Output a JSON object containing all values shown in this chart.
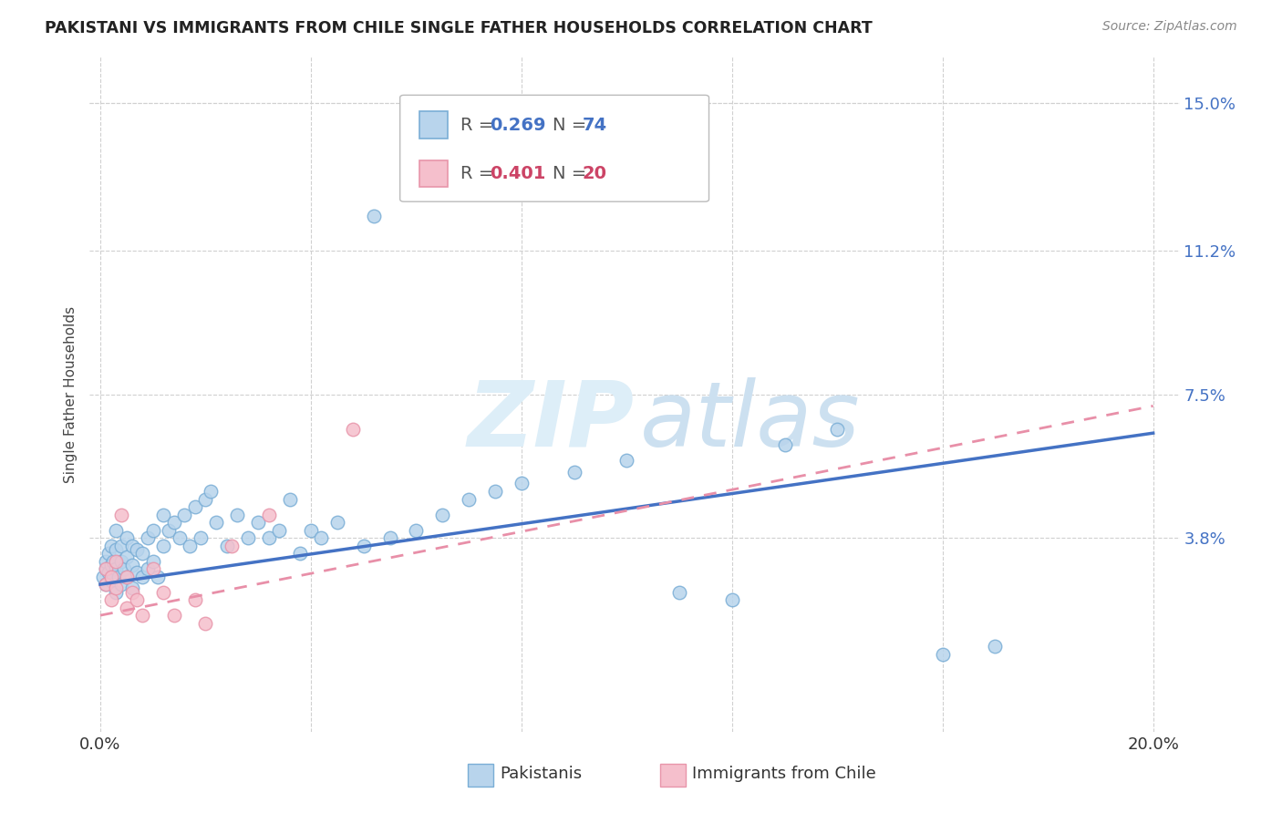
{
  "title": "PAKISTANI VS IMMIGRANTS FROM CHILE SINGLE FATHER HOUSEHOLDS CORRELATION CHART",
  "source": "Source: ZipAtlas.com",
  "ylabel": "Single Father Households",
  "xlim": [
    -0.002,
    0.205
  ],
  "ylim": [
    -0.012,
    0.162
  ],
  "xticks": [
    0.0,
    0.04,
    0.08,
    0.12,
    0.16,
    0.2
  ],
  "xticklabels": [
    "0.0%",
    "",
    "",
    "",
    "",
    "20.0%"
  ],
  "yticks": [
    0.038,
    0.075,
    0.112,
    0.15
  ],
  "yticklabels": [
    "3.8%",
    "7.5%",
    "11.2%",
    "15.0%"
  ],
  "blue_fill": "#b8d4ec",
  "blue_edge": "#7aaed6",
  "pink_fill": "#f5bfcc",
  "pink_edge": "#e895aa",
  "trend_blue": "#4472c4",
  "trend_pink": "#e88fa8",
  "grid_color": "#d0d0d0",
  "blue_trend_start_y": 0.026,
  "blue_trend_end_y": 0.065,
  "pink_trend_start_y": 0.018,
  "pink_trend_end_y": 0.072,
  "pak_x": [
    0.0005,
    0.001,
    0.001,
    0.001,
    0.0015,
    0.0015,
    0.002,
    0.002,
    0.002,
    0.0025,
    0.0025,
    0.003,
    0.003,
    0.003,
    0.003,
    0.0035,
    0.004,
    0.004,
    0.004,
    0.0045,
    0.005,
    0.005,
    0.005,
    0.006,
    0.006,
    0.006,
    0.007,
    0.007,
    0.008,
    0.008,
    0.009,
    0.009,
    0.01,
    0.01,
    0.011,
    0.012,
    0.012,
    0.013,
    0.014,
    0.015,
    0.016,
    0.017,
    0.018,
    0.019,
    0.02,
    0.021,
    0.022,
    0.024,
    0.026,
    0.028,
    0.03,
    0.032,
    0.034,
    0.036,
    0.038,
    0.04,
    0.042,
    0.045,
    0.05,
    0.055,
    0.06,
    0.065,
    0.07,
    0.075,
    0.08,
    0.09,
    0.1,
    0.11,
    0.12,
    0.13,
    0.14,
    0.16,
    0.17,
    0.052
  ],
  "pak_y": [
    0.028,
    0.03,
    0.026,
    0.032,
    0.029,
    0.034,
    0.027,
    0.031,
    0.036,
    0.028,
    0.032,
    0.024,
    0.03,
    0.035,
    0.04,
    0.028,
    0.026,
    0.032,
    0.036,
    0.03,
    0.028,
    0.033,
    0.038,
    0.025,
    0.031,
    0.036,
    0.029,
    0.035,
    0.028,
    0.034,
    0.03,
    0.038,
    0.032,
    0.04,
    0.028,
    0.036,
    0.044,
    0.04,
    0.042,
    0.038,
    0.044,
    0.036,
    0.046,
    0.038,
    0.048,
    0.05,
    0.042,
    0.036,
    0.044,
    0.038,
    0.042,
    0.038,
    0.04,
    0.048,
    0.034,
    0.04,
    0.038,
    0.042,
    0.036,
    0.038,
    0.04,
    0.044,
    0.048,
    0.05,
    0.052,
    0.055,
    0.058,
    0.024,
    0.022,
    0.062,
    0.066,
    0.008,
    0.01,
    0.121
  ],
  "chile_x": [
    0.001,
    0.001,
    0.002,
    0.002,
    0.003,
    0.003,
    0.004,
    0.005,
    0.005,
    0.006,
    0.007,
    0.008,
    0.01,
    0.012,
    0.014,
    0.018,
    0.02,
    0.025,
    0.032,
    0.048
  ],
  "chile_y": [
    0.026,
    0.03,
    0.022,
    0.028,
    0.025,
    0.032,
    0.044,
    0.028,
    0.02,
    0.024,
    0.022,
    0.018,
    0.03,
    0.024,
    0.018,
    0.022,
    0.016,
    0.036,
    0.044,
    0.066
  ]
}
